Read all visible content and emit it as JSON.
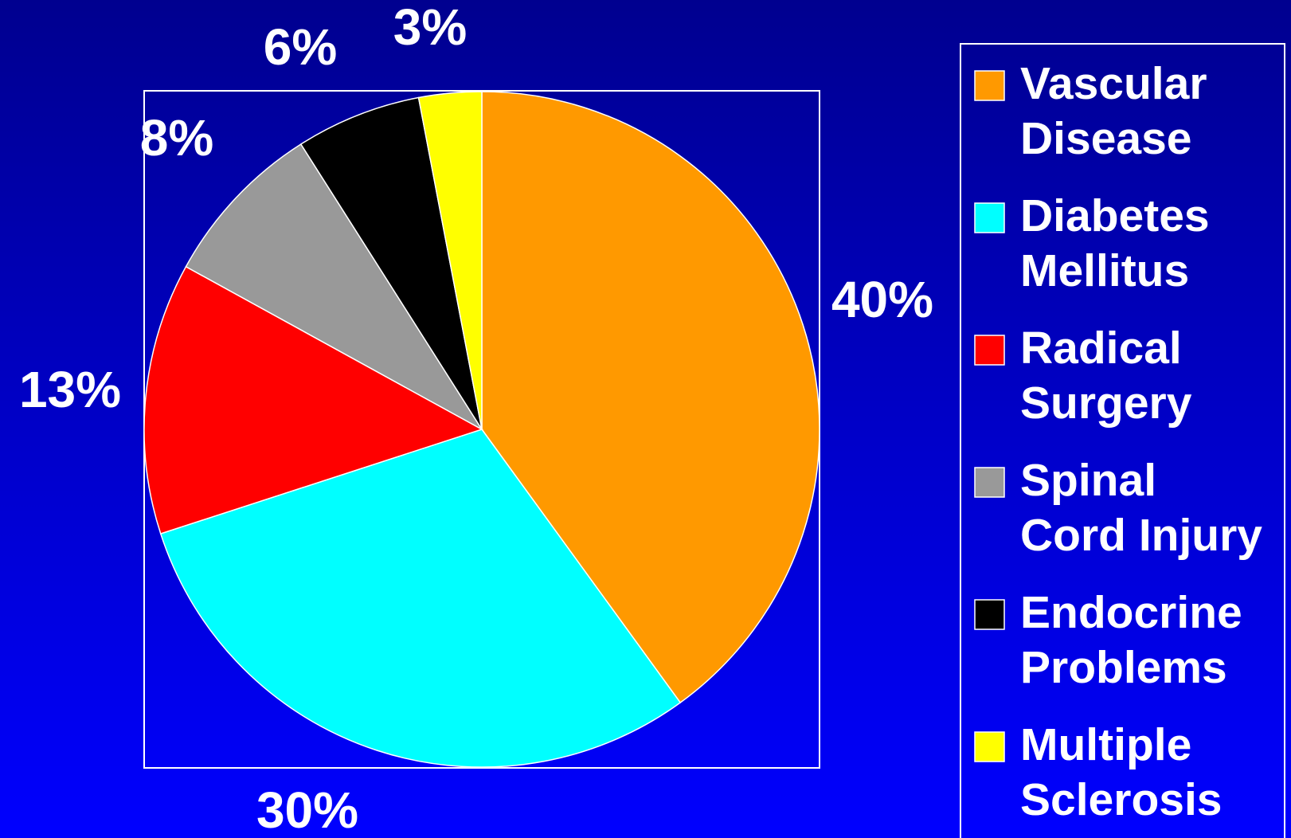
{
  "chart_data": {
    "type": "pie",
    "categories": [
      "Vascular\nDisease",
      "Diabetes\nMellitus",
      "Radical\nSurgery",
      "Spinal\nCord Injury",
      "Endocrine\nProblems",
      "Multiple\nSclerosis"
    ],
    "values": [
      40,
      30,
      13,
      8,
      6,
      3
    ],
    "value_labels": [
      "40%",
      "30%",
      "13%",
      "8%",
      "6%",
      "3%"
    ],
    "colors": [
      "#FF9900",
      "#00FFFF",
      "#FF0000",
      "#999999",
      "#000000",
      "#FFFF00"
    ],
    "legend": "right"
  }
}
